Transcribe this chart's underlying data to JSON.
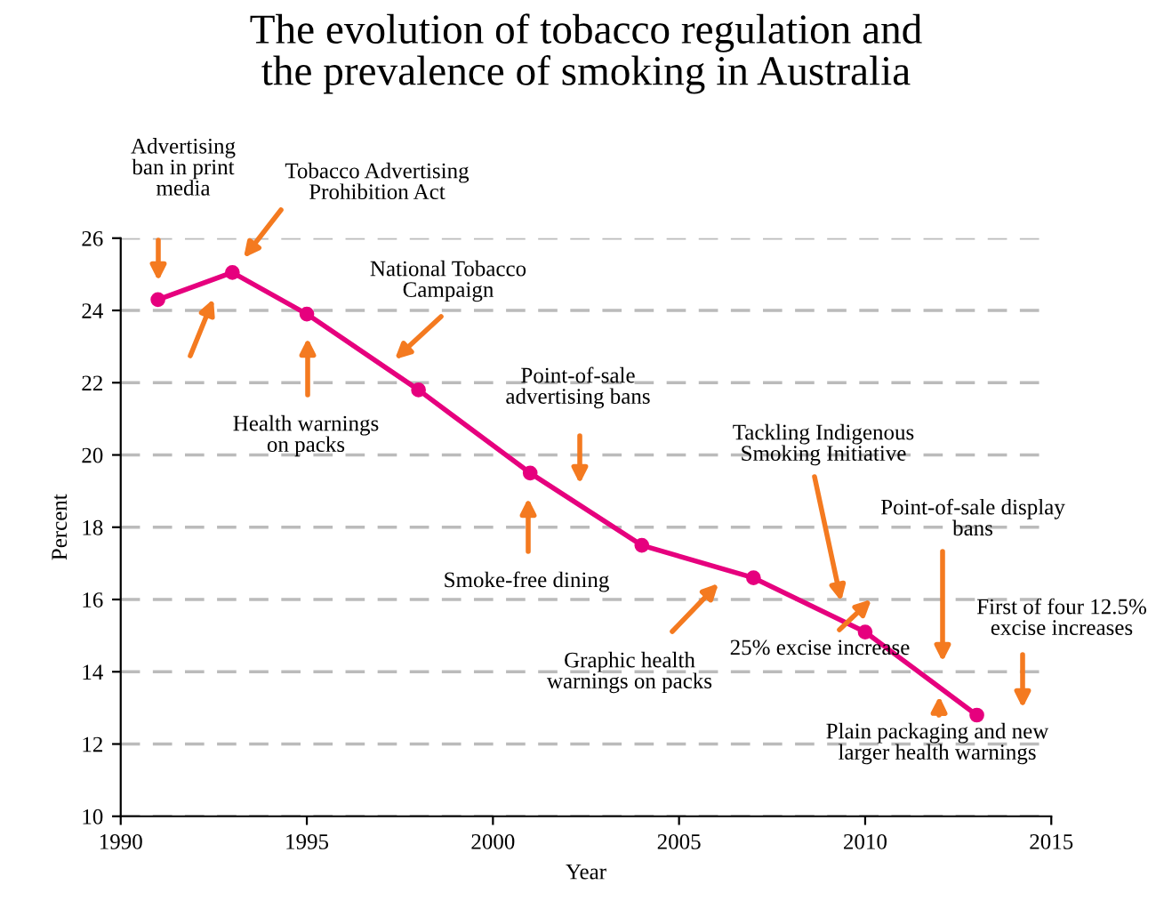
{
  "chart_data": {
    "type": "line",
    "title": "The evolution of tobacco regulation and\nthe prevalence of smoking in Australia",
    "xlabel": "Year",
    "ylabel": "Percent",
    "x": [
      1991,
      1993,
      1995,
      1998,
      2001,
      2004,
      2007,
      2010,
      2013
    ],
    "series": [
      {
        "color": "#e6007e",
        "values": [
          24.3,
          25.05,
          23.9,
          21.8,
          19.5,
          17.5,
          16.6,
          15.1,
          12.8
        ]
      }
    ],
    "marker": "circle",
    "line_style": "solid",
    "xlim": [
      1990,
      2015
    ],
    "xticks": [
      1990,
      1995,
      2000,
      2005,
      2010,
      2015
    ],
    "ylim": [
      10,
      26
    ],
    "yticks": [
      10,
      12,
      14,
      16,
      18,
      20,
      22,
      24,
      26
    ],
    "grid": "y",
    "legend": false,
    "annotations": [
      "Advertising\nban in print\nmedia",
      "Tobacco Advertising\nProhibition Act",
      "Health warnings\non packs",
      "National Tobacco\nCampaign",
      "Point-of-sale\nadvertising bans",
      "Smoke-free dining",
      "Graphic health\nwarnings on packs",
      "Tackling Indigenous\nSmoking Initiative",
      "Point-of-sale display\nbans",
      "25% excise increase",
      "First of four 12.5%\nexcise increases",
      {
        "text": "Plain packaging and new\nlarger health warnings",
        "x": 2012,
        "y": 13.6
      }
    ]
  }
}
